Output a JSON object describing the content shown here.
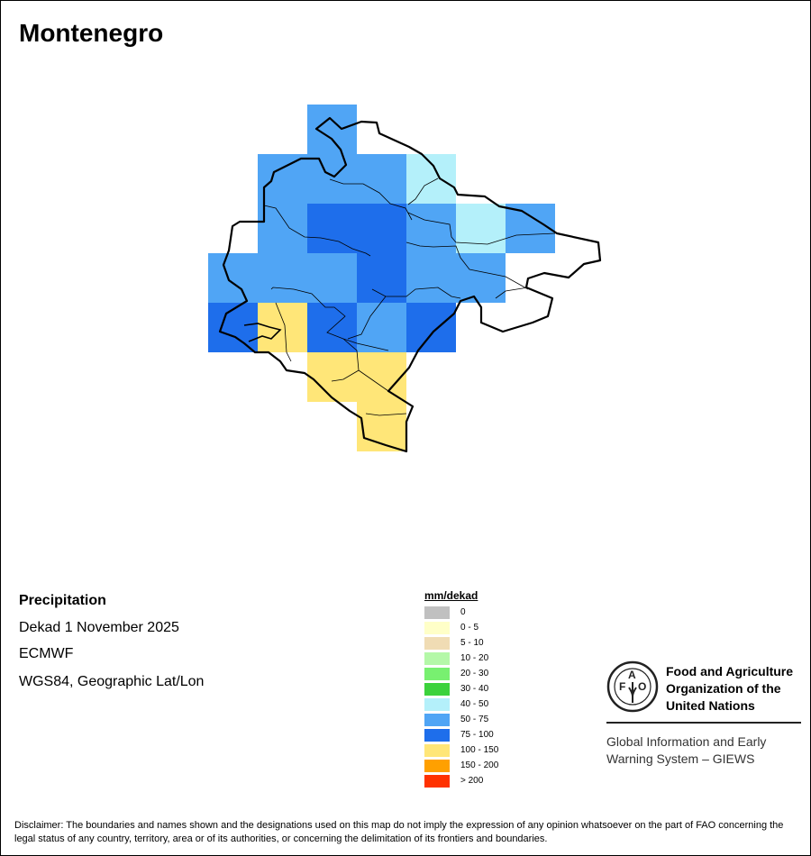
{
  "title": "Montenegro",
  "info": {
    "variable": "Precipitation",
    "period": "Dekad 1 November 2025",
    "source": "ECMWF",
    "projection": "WGS84, Geographic Lat/Lon"
  },
  "legend": {
    "title": "mm/dekad",
    "items": [
      {
        "label": "0",
        "color": "#c0c0c0"
      },
      {
        "label": "0 - 5",
        "color": "#ffffc8"
      },
      {
        "label": "5 - 10",
        "color": "#f0dcb4"
      },
      {
        "label": "10 - 20",
        "color": "#b4f8a8"
      },
      {
        "label": "20 - 30",
        "color": "#78f070"
      },
      {
        "label": "30 - 40",
        "color": "#3cd23c"
      },
      {
        "label": "40 - 50",
        "color": "#b4f0fa"
      },
      {
        "label": "50 - 75",
        "color": "#50a5f5"
      },
      {
        "label": "75 - 100",
        "color": "#1e6eeb"
      },
      {
        "label": "100 - 150",
        "color": "#ffe678"
      },
      {
        "label": "150 - 200",
        "color": "#ffa000"
      },
      {
        "label": "> 200",
        "color": "#ff3200"
      }
    ]
  },
  "grid_classes": [
    [
      null,
      null,
      "50 - 75",
      null,
      null,
      null,
      null
    ],
    [
      null,
      "50 - 75",
      "50 - 75",
      "50 - 75",
      "40 - 50",
      null,
      null
    ],
    [
      null,
      "50 - 75",
      "75 - 100",
      "75 - 100",
      "50 - 75",
      "40 - 50",
      "50 - 75"
    ],
    [
      "50 - 75",
      "50 - 75",
      "50 - 75",
      "75 - 100",
      "50 - 75",
      "50 - 75",
      null
    ],
    [
      "75 - 100",
      "100 - 150",
      "75 - 100",
      "50 - 75",
      "75 - 100",
      null,
      null
    ],
    [
      null,
      null,
      "100 - 150",
      "100 - 150",
      null,
      null,
      null
    ],
    [
      null,
      null,
      null,
      "100 - 150",
      null,
      null,
      null
    ]
  ],
  "logo": {
    "org_name_lines": [
      "Food and Agriculture",
      "Organization of the",
      "United Nations"
    ],
    "emblem_text": "FAO FIAT PANIS",
    "program_lines": [
      "Global Information and Early",
      "Warning System – GIEWS"
    ]
  },
  "disclaimer": "Disclaimer: The boundaries and names shown and the designations used on this map do not imply the expression of any opinion whatsoever on the part of FAO concerning the legal status of any country, territory, area or of its authorities, or concerning the delimitation of its frontiers and boundaries."
}
